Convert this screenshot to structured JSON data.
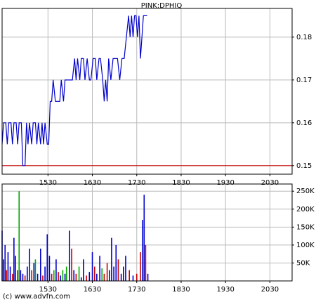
{
  "chart_data": [
    {
      "type": "line",
      "title": "PINK:DPHIQ",
      "color": "#0000cc",
      "grid": true,
      "xlim": [
        868,
        1260
      ],
      "xticks": [
        {
          "value": 930,
          "label": "1530"
        },
        {
          "value": 990,
          "label": "1630"
        },
        {
          "value": 1050,
          "label": "1730"
        },
        {
          "value": 1110,
          "label": "1830"
        },
        {
          "value": 1170,
          "label": "1930"
        },
        {
          "value": 1230,
          "label": "2030"
        }
      ],
      "ylim": [
        0.148,
        0.1867
      ],
      "yticks": [
        0.15,
        0.16,
        0.17,
        0.18
      ],
      "hlines": [
        {
          "value": 0.15,
          "color": "#cc0000"
        }
      ],
      "x": [
        868,
        870,
        873,
        875,
        877,
        880,
        882,
        884,
        887,
        889,
        891,
        894,
        896,
        899,
        901,
        903,
        905,
        908,
        910,
        913,
        915,
        917,
        920,
        922,
        924,
        926,
        929,
        931,
        933,
        935,
        937,
        940,
        943,
        946,
        948,
        951,
        953,
        956,
        960,
        963,
        966,
        968,
        970,
        973,
        975,
        978,
        980,
        983,
        986,
        988,
        991,
        994,
        996,
        999,
        1001,
        1004,
        1006,
        1008,
        1010,
        1012,
        1015,
        1018,
        1021,
        1024,
        1027,
        1030,
        1033,
        1036,
        1039,
        1041,
        1043,
        1045,
        1047,
        1049,
        1051,
        1053,
        1055,
        1057,
        1059,
        1062,
        1064
      ],
      "values": [
        0.155,
        0.16,
        0.16,
        0.155,
        0.16,
        0.16,
        0.155,
        0.16,
        0.16,
        0.155,
        0.16,
        0.16,
        0.15,
        0.15,
        0.16,
        0.155,
        0.16,
        0.155,
        0.16,
        0.16,
        0.155,
        0.16,
        0.155,
        0.16,
        0.155,
        0.16,
        0.155,
        0.155,
        0.165,
        0.165,
        0.17,
        0.165,
        0.165,
        0.165,
        0.17,
        0.165,
        0.17,
        0.17,
        0.17,
        0.17,
        0.175,
        0.17,
        0.175,
        0.17,
        0.175,
        0.175,
        0.17,
        0.175,
        0.17,
        0.17,
        0.175,
        0.175,
        0.17,
        0.175,
        0.175,
        0.17,
        0.165,
        0.17,
        0.165,
        0.175,
        0.17,
        0.175,
        0.175,
        0.175,
        0.17,
        0.175,
        0.175,
        0.18,
        0.185,
        0.18,
        0.185,
        0.18,
        0.185,
        0.185,
        0.18,
        0.185,
        0.175,
        0.18,
        0.185,
        0.185,
        0.185
      ]
    },
    {
      "type": "bar",
      "grid": true,
      "xlim": [
        868,
        1260
      ],
      "xticks": [
        {
          "value": 930,
          "label": "1530"
        },
        {
          "value": 990,
          "label": "1630"
        },
        {
          "value": 1050,
          "label": "1730"
        },
        {
          "value": 1110,
          "label": "1830"
        },
        {
          "value": 1170,
          "label": "1930"
        },
        {
          "value": 1230,
          "label": "2030"
        }
      ],
      "ylim": [
        0,
        270000
      ],
      "yticks": [
        {
          "value": 50000,
          "label": "50K"
        },
        {
          "value": 100000,
          "label": "100K"
        },
        {
          "value": 150000,
          "label": "150K"
        },
        {
          "value": 200000,
          "label": "200K"
        },
        {
          "value": 250000,
          "label": "250K"
        }
      ],
      "x": [
        868,
        870,
        872,
        874,
        876,
        879,
        882,
        884,
        886,
        889,
        891,
        893,
        896,
        899,
        902,
        905,
        908,
        911,
        913,
        916,
        920,
        923,
        926,
        929,
        932,
        935,
        938,
        941,
        944,
        947,
        950,
        953,
        955,
        959,
        962,
        965,
        968,
        972,
        975,
        978,
        982,
        986,
        990,
        993,
        996,
        1000,
        1003,
        1006,
        1010,
        1013,
        1016,
        1019,
        1022,
        1025,
        1029,
        1032,
        1035,
        1040,
        1045,
        1050,
        1055,
        1058,
        1060,
        1062,
        1065
      ],
      "values": [
        140000,
        60000,
        100000,
        30000,
        80000,
        40000,
        20000,
        120000,
        70000,
        30000,
        250000,
        30000,
        20000,
        15000,
        40000,
        90000,
        30000,
        50000,
        60000,
        20000,
        90000,
        15000,
        40000,
        130000,
        70000,
        20000,
        30000,
        60000,
        25000,
        15000,
        30000,
        20000,
        40000,
        140000,
        90000,
        30000,
        20000,
        40000,
        10000,
        60000,
        15000,
        25000,
        80000,
        40000,
        20000,
        70000,
        35000,
        20000,
        50000,
        30000,
        120000,
        40000,
        100000,
        60000,
        20000,
        40000,
        70000,
        30000,
        15000,
        20000,
        80000,
        170000,
        240000,
        100000,
        20000
      ],
      "colors": [
        "#0000cc",
        "#0000cc",
        "#0000cc",
        "#cc0000",
        "#0000cc",
        "#0000cc",
        "#cc0000",
        "#0000cc",
        "#0000cc",
        "#cc0000",
        "#00aa00",
        "#0000cc",
        "#0000cc",
        "#cc0000",
        "#0000cc",
        "#0000cc",
        "#cc0000",
        "#0000cc",
        "#00aa00",
        "#0000cc",
        "#0000cc",
        "#cc0000",
        "#0000cc",
        "#0000cc",
        "#0000cc",
        "#cc0000",
        "#00aa00",
        "#0000cc",
        "#cc0000",
        "#0000cc",
        "#00aa00",
        "#0000cc",
        "#00aa00",
        "#0000cc",
        "#cc0000",
        "#0000cc",
        "#cc0000",
        "#00aa00",
        "#0000cc",
        "#0000cc",
        "#cc0000",
        "#0000cc",
        "#0000cc",
        "#cc0000",
        "#0000cc",
        "#0000cc",
        "#00aa00",
        "#cc0000",
        "#cc0000",
        "#0000cc",
        "#0000cc",
        "#0000cc",
        "#0000cc",
        "#cc0000",
        "#0000cc",
        "#0000cc",
        "#0000cc",
        "#cc0000",
        "#0000cc",
        "#cc0000",
        "#cc0000",
        "#0000cc",
        "#0000cc",
        "#cc0000",
        "#0000cc"
      ]
    }
  ],
  "footer": "(c) www.advfn.com"
}
